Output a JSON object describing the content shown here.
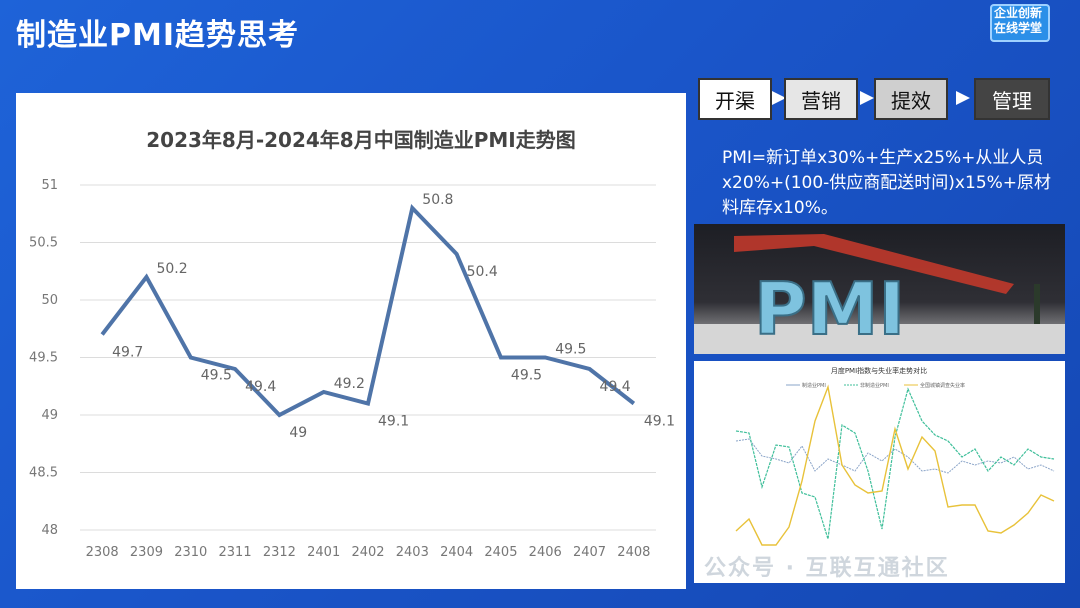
{
  "header": {
    "title": "制造业PMI趋势思考"
  },
  "logo": {
    "line1": "企业创新",
    "line2": "在线学堂"
  },
  "chart_data": {
    "type": "line",
    "title": "2023年8月-2024年8月中国制造业PMI走势图",
    "categories": [
      "2308",
      "2309",
      "2310",
      "2311",
      "2312",
      "2401",
      "2402",
      "2403",
      "2404",
      "2405",
      "2406",
      "2407",
      "2408"
    ],
    "values": [
      49.7,
      50.2,
      49.5,
      49.4,
      49,
      49.2,
      49.1,
      50.8,
      50.4,
      49.5,
      49.5,
      49.4,
      49.1
    ],
    "data_labels": [
      "49.7",
      "50.2",
      "49.5",
      "49.4",
      "49",
      "49.2",
      "49.1",
      "50.8",
      "50.4",
      "49.5",
      "49.5",
      "49.4",
      "49.1"
    ],
    "ylim": [
      48,
      51
    ],
    "yticks": [
      "48",
      "48.5",
      "49",
      "49.5",
      "50",
      "50.5",
      "51"
    ],
    "grid": true,
    "xlabel": "",
    "ylabel": "",
    "line_color": "#4f74a8"
  },
  "flow": {
    "steps": [
      "开渠",
      "营销",
      "提效",
      "管理"
    ]
  },
  "formula": {
    "text": "PMI=新订单x30%+生产x25%+从业人员x20%+(100-供应商配送时间)x15%+原材料库存x10%。"
  },
  "photo": {
    "word": "PMI"
  },
  "mini_chart": {
    "title": "月度PMI指数与失业率走势对比",
    "legend": [
      "制造业PMI",
      "非制造业PMI",
      "全国城镇调查失业率"
    ],
    "colors": [
      "#8aa4c8",
      "#3fbf9a",
      "#e8c23a"
    ]
  },
  "watermark": {
    "text": "公众号 · 互联互通社区"
  }
}
